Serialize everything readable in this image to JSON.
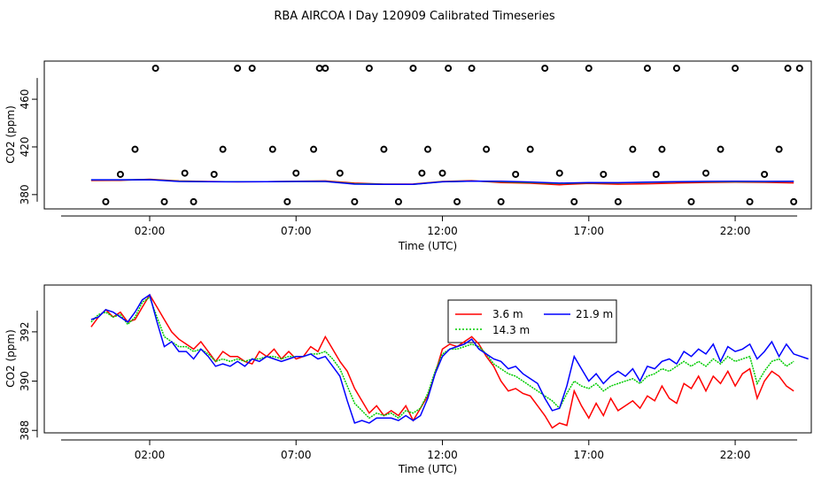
{
  "title": "RBA AIRCOA I  Day 120909  Calibrated Timeseries",
  "colors": {
    "s1": "#ff0000",
    "s2": "#00cc00",
    "s3": "#0000ff",
    "frame": "#000000"
  },
  "chart_data": [
    {
      "type": "scatter+line",
      "xlabel": "Time (UTC)",
      "ylabel": "CO2 (ppm)",
      "xlim": [
        -1.6,
        24.6
      ],
      "ylim": [
        368,
        492
      ],
      "xticks": [
        2,
        7,
        12,
        17,
        22
      ],
      "xtick_labels": [
        "02:00",
        "07:00",
        "12:00",
        "17:00",
        "22:00"
      ],
      "yticks": [
        380,
        420,
        460
      ],
      "ytick_labels": [
        "380",
        "420",
        "460"
      ],
      "points": {
        "marker": "open-circle",
        "x": [
          0.5,
          1.0,
          1.5,
          2.2,
          2.5,
          3.2,
          3.5,
          4.2,
          4.5,
          5.0,
          5.5,
          6.2,
          6.7,
          7.0,
          7.6,
          7.8,
          8.0,
          8.5,
          9.0,
          9.5,
          10.0,
          10.5,
          11.0,
          11.3,
          11.5,
          12.0,
          12.2,
          12.5,
          13.0,
          13.5,
          14.0,
          14.5,
          15.0,
          15.5,
          16.0,
          16.5,
          17.0,
          17.5,
          18.0,
          18.5,
          19.0,
          19.3,
          19.5,
          20.0,
          20.5,
          21.0,
          21.5,
          22.0,
          22.5,
          23.0,
          23.5,
          23.8,
          24.0,
          24.2
        ],
        "y": [
          374,
          397,
          418,
          486,
          374,
          398,
          374,
          397,
          418,
          486,
          486,
          418,
          374,
          398,
          418,
          486,
          486,
          398,
          374,
          486,
          418,
          374,
          486,
          398,
          418,
          398,
          486,
          374,
          486,
          418,
          374,
          397,
          418,
          486,
          398,
          374,
          486,
          397,
          374,
          418,
          486,
          397,
          418,
          486,
          374,
          398,
          418,
          486,
          374,
          397,
          418,
          486,
          374,
          486
        ]
      },
      "series": [
        {
          "color": "#ff0000",
          "x": [
            0,
            1,
            2,
            3,
            4,
            5,
            6,
            7,
            8,
            9,
            10,
            11,
            12,
            13,
            14,
            15,
            16,
            17,
            18,
            19,
            20,
            21,
            22,
            23,
            24
          ],
          "y": [
            391.8,
            392.0,
            392.9,
            391.5,
            391.0,
            390.7,
            390.8,
            391.2,
            391.5,
            389.6,
            388.8,
            388.9,
            391.0,
            391.7,
            390.1,
            389.5,
            388.3,
            389.3,
            388.7,
            389.1,
            389.7,
            390.2,
            390.4,
            390.3,
            389.8
          ]
        },
        {
          "color": "#00cc00",
          "x": [
            0,
            1,
            2,
            3,
            4,
            5,
            6,
            7,
            8,
            9,
            10,
            11,
            12,
            13,
            14,
            15,
            16,
            17,
            18,
            19,
            20,
            21,
            22,
            23,
            24
          ],
          "y": [
            392.3,
            392.3,
            392.6,
            391.2,
            390.9,
            390.8,
            390.9,
            391.0,
            391.1,
            389.1,
            388.7,
            388.6,
            390.8,
            391.3,
            390.8,
            390.2,
            389.3,
            389.9,
            389.8,
            390.3,
            390.7,
            390.8,
            390.9,
            390.9,
            391.1
          ]
        },
        {
          "color": "#0000ff",
          "x": [
            0,
            1,
            2,
            3,
            4,
            5,
            6,
            7,
            8,
            9,
            10,
            11,
            12,
            13,
            14,
            15,
            16,
            17,
            18,
            19,
            20,
            21,
            22,
            23,
            24
          ],
          "y": [
            392.4,
            392.4,
            392.5,
            391.0,
            390.8,
            390.7,
            390.8,
            391.0,
            391.0,
            388.8,
            388.6,
            388.6,
            390.7,
            391.3,
            391.2,
            390.6,
            389.6,
            390.1,
            390.0,
            390.4,
            390.9,
            391.1,
            391.2,
            391.1,
            391.1
          ]
        }
      ]
    },
    {
      "type": "line",
      "xlabel": "Time (UTC)",
      "ylabel": "CO2 (ppm)",
      "xlim": [
        -1.6,
        24.6
      ],
      "ylim": [
        387.9,
        393.9
      ],
      "xticks": [
        2,
        7,
        12,
        17,
        22
      ],
      "xtick_labels": [
        "02:00",
        "07:00",
        "12:00",
        "17:00",
        "22:00"
      ],
      "yticks": [
        388,
        390,
        392
      ],
      "ytick_labels": [
        "388",
        "390",
        "392"
      ],
      "legend": {
        "placement": "top-center",
        "entries": [
          "3.6 m",
          "14.3 m",
          "21.9 m"
        ]
      },
      "series": [
        {
          "name": "3.6 m",
          "color": "#ff0000",
          "x": [
            0.0,
            0.25,
            0.5,
            0.75,
            1.0,
            1.25,
            1.5,
            1.75,
            2.0,
            2.25,
            2.5,
            2.75,
            3.0,
            3.25,
            3.5,
            3.75,
            4.0,
            4.25,
            4.5,
            4.75,
            5.0,
            5.25,
            5.5,
            5.75,
            6.0,
            6.25,
            6.5,
            6.75,
            7.0,
            7.25,
            7.5,
            7.75,
            8.0,
            8.25,
            8.5,
            8.75,
            9.0,
            9.25,
            9.5,
            9.75,
            10.0,
            10.25,
            10.5,
            10.75,
            11.0,
            11.25,
            11.5,
            11.75,
            12.0,
            12.25,
            12.5,
            12.75,
            13.0,
            13.25,
            13.5,
            13.75,
            14.0,
            14.25,
            14.5,
            14.75,
            15.0,
            15.25,
            15.5,
            15.75,
            16.0,
            16.25,
            16.5,
            16.75,
            17.0,
            17.25,
            17.5,
            17.75,
            18.0,
            18.25,
            18.5,
            18.75,
            19.0,
            19.25,
            19.5,
            19.75,
            20.0,
            20.25,
            20.5,
            20.75,
            21.0,
            21.25,
            21.5,
            21.75,
            22.0,
            22.25,
            22.5,
            22.75,
            23.0,
            23.25,
            23.5,
            23.75,
            24.0
          ],
          "y": [
            392.2,
            392.6,
            392.9,
            392.6,
            392.8,
            392.4,
            392.5,
            393.0,
            393.5,
            393.0,
            392.5,
            392.0,
            391.7,
            391.5,
            391.3,
            391.6,
            391.2,
            390.8,
            391.2,
            391.0,
            391.0,
            390.8,
            390.7,
            391.2,
            391.0,
            391.3,
            390.9,
            391.2,
            390.9,
            391.0,
            391.4,
            391.2,
            391.8,
            391.3,
            390.8,
            390.4,
            389.7,
            389.2,
            388.7,
            389.0,
            388.6,
            388.8,
            388.6,
            389.0,
            388.4,
            388.9,
            389.4,
            390.3,
            391.3,
            391.5,
            391.4,
            391.6,
            391.8,
            391.5,
            391.0,
            390.6,
            390.0,
            389.6,
            389.7,
            389.5,
            389.4,
            389.0,
            388.6,
            388.1,
            388.3,
            388.2,
            389.6,
            389.0,
            388.5,
            389.1,
            388.6,
            389.3,
            388.8,
            389.0,
            389.2,
            388.9,
            389.4,
            389.2,
            389.8,
            389.3,
            389.1,
            389.9,
            389.7,
            390.2,
            389.6,
            390.2,
            389.9,
            390.4,
            389.8,
            390.3,
            390.5,
            389.3,
            390.0,
            390.4,
            390.2,
            389.8,
            389.6
          ]
        },
        {
          "name": "14.3 m",
          "color": "#00cc00",
          "x": [
            0.0,
            0.25,
            0.5,
            0.75,
            1.0,
            1.25,
            1.5,
            1.75,
            2.0,
            2.25,
            2.5,
            2.75,
            3.0,
            3.25,
            3.5,
            3.75,
            4.0,
            4.25,
            4.5,
            4.75,
            5.0,
            5.25,
            5.5,
            5.75,
            6.0,
            6.25,
            6.5,
            6.75,
            7.0,
            7.25,
            7.5,
            7.75,
            8.0,
            8.25,
            8.5,
            8.75,
            9.0,
            9.25,
            9.5,
            9.75,
            10.0,
            10.25,
            10.5,
            10.75,
            11.0,
            11.25,
            11.5,
            11.75,
            12.0,
            12.25,
            12.5,
            12.75,
            13.0,
            13.25,
            13.5,
            13.75,
            14.0,
            14.25,
            14.5,
            14.75,
            15.0,
            15.25,
            15.5,
            15.75,
            16.0,
            16.25,
            16.5,
            16.75,
            17.0,
            17.25,
            17.5,
            17.75,
            18.0,
            18.25,
            18.5,
            18.75,
            19.0,
            19.25,
            19.5,
            19.75,
            20.0,
            20.25,
            20.5,
            20.75,
            21.0,
            21.25,
            21.5,
            21.75,
            22.0,
            22.25,
            22.5,
            22.75,
            23.0,
            23.25,
            23.5,
            23.75,
            24.0
          ],
          "y": [
            392.4,
            392.7,
            392.8,
            392.6,
            392.7,
            392.3,
            392.6,
            393.2,
            393.4,
            392.6,
            391.8,
            391.6,
            391.4,
            391.4,
            391.2,
            391.3,
            391.1,
            390.8,
            390.9,
            390.8,
            390.9,
            390.8,
            390.9,
            390.9,
            391.0,
            391.0,
            390.9,
            391.0,
            391.0,
            391.0,
            391.1,
            391.1,
            391.2,
            390.9,
            390.5,
            389.8,
            389.1,
            388.8,
            388.5,
            388.7,
            388.6,
            388.7,
            388.5,
            388.8,
            388.7,
            388.9,
            389.5,
            390.4,
            391.1,
            391.3,
            391.3,
            391.4,
            391.5,
            391.4,
            391.1,
            390.7,
            390.5,
            390.3,
            390.2,
            390.0,
            389.8,
            389.6,
            389.4,
            389.2,
            388.9,
            389.5,
            390.0,
            389.8,
            389.7,
            389.9,
            389.6,
            389.8,
            389.9,
            390.0,
            390.1,
            389.9,
            390.2,
            390.3,
            390.5,
            390.4,
            390.6,
            390.8,
            390.6,
            390.8,
            390.6,
            390.9,
            390.7,
            391.0,
            390.8,
            390.9,
            391.0,
            389.9,
            390.4,
            390.8,
            390.9,
            390.6,
            390.8
          ]
        },
        {
          "name": "21.9 m",
          "color": "#0000ff",
          "x": [
            0.0,
            0.25,
            0.5,
            0.75,
            1.0,
            1.25,
            1.5,
            1.75,
            2.0,
            2.25,
            2.5,
            2.75,
            3.0,
            3.25,
            3.5,
            3.75,
            4.0,
            4.25,
            4.5,
            4.75,
            5.0,
            5.25,
            5.5,
            5.75,
            6.0,
            6.25,
            6.5,
            6.75,
            7.0,
            7.25,
            7.5,
            7.75,
            8.0,
            8.25,
            8.5,
            8.75,
            9.0,
            9.25,
            9.5,
            9.75,
            10.0,
            10.25,
            10.5,
            10.75,
            11.0,
            11.25,
            11.5,
            11.75,
            12.0,
            12.25,
            12.5,
            12.75,
            13.0,
            13.25,
            13.5,
            13.75,
            14.0,
            14.25,
            14.5,
            14.75,
            15.0,
            15.25,
            15.5,
            15.75,
            16.0,
            16.25,
            16.5,
            16.75,
            17.0,
            17.25,
            17.5,
            17.75,
            18.0,
            18.25,
            18.5,
            18.75,
            19.0,
            19.25,
            19.5,
            19.75,
            20.0,
            20.25,
            20.5,
            20.75,
            21.0,
            21.25,
            21.5,
            21.75,
            22.0,
            22.25,
            22.5,
            22.75,
            23.0,
            23.25,
            23.5,
            23.75,
            24.0,
            24.25,
            24.5
          ],
          "y": [
            392.5,
            392.6,
            392.9,
            392.8,
            392.6,
            392.4,
            392.8,
            393.3,
            393.5,
            392.4,
            391.4,
            391.6,
            391.2,
            391.2,
            390.9,
            391.3,
            391.0,
            390.6,
            390.7,
            390.6,
            390.8,
            390.6,
            390.9,
            390.8,
            391.0,
            390.9,
            390.8,
            390.9,
            391.0,
            391.0,
            391.1,
            390.9,
            391.0,
            390.6,
            390.2,
            389.2,
            388.3,
            388.4,
            388.3,
            388.5,
            388.5,
            388.5,
            388.4,
            388.6,
            388.4,
            388.6,
            389.3,
            390.3,
            391.0,
            391.3,
            391.4,
            391.5,
            391.7,
            391.3,
            391.1,
            390.9,
            390.8,
            390.5,
            390.6,
            390.3,
            390.1,
            389.9,
            389.3,
            388.8,
            388.9,
            389.8,
            391.0,
            390.5,
            390.0,
            390.3,
            389.9,
            390.2,
            390.4,
            390.2,
            390.5,
            390.0,
            390.6,
            390.5,
            390.8,
            390.9,
            390.7,
            391.2,
            391.0,
            391.3,
            391.1,
            391.5,
            390.8,
            391.4,
            391.2,
            391.3,
            391.5,
            390.9,
            391.2,
            391.6,
            391.0,
            391.5,
            391.1,
            391.0,
            390.9
          ]
        }
      ]
    }
  ]
}
